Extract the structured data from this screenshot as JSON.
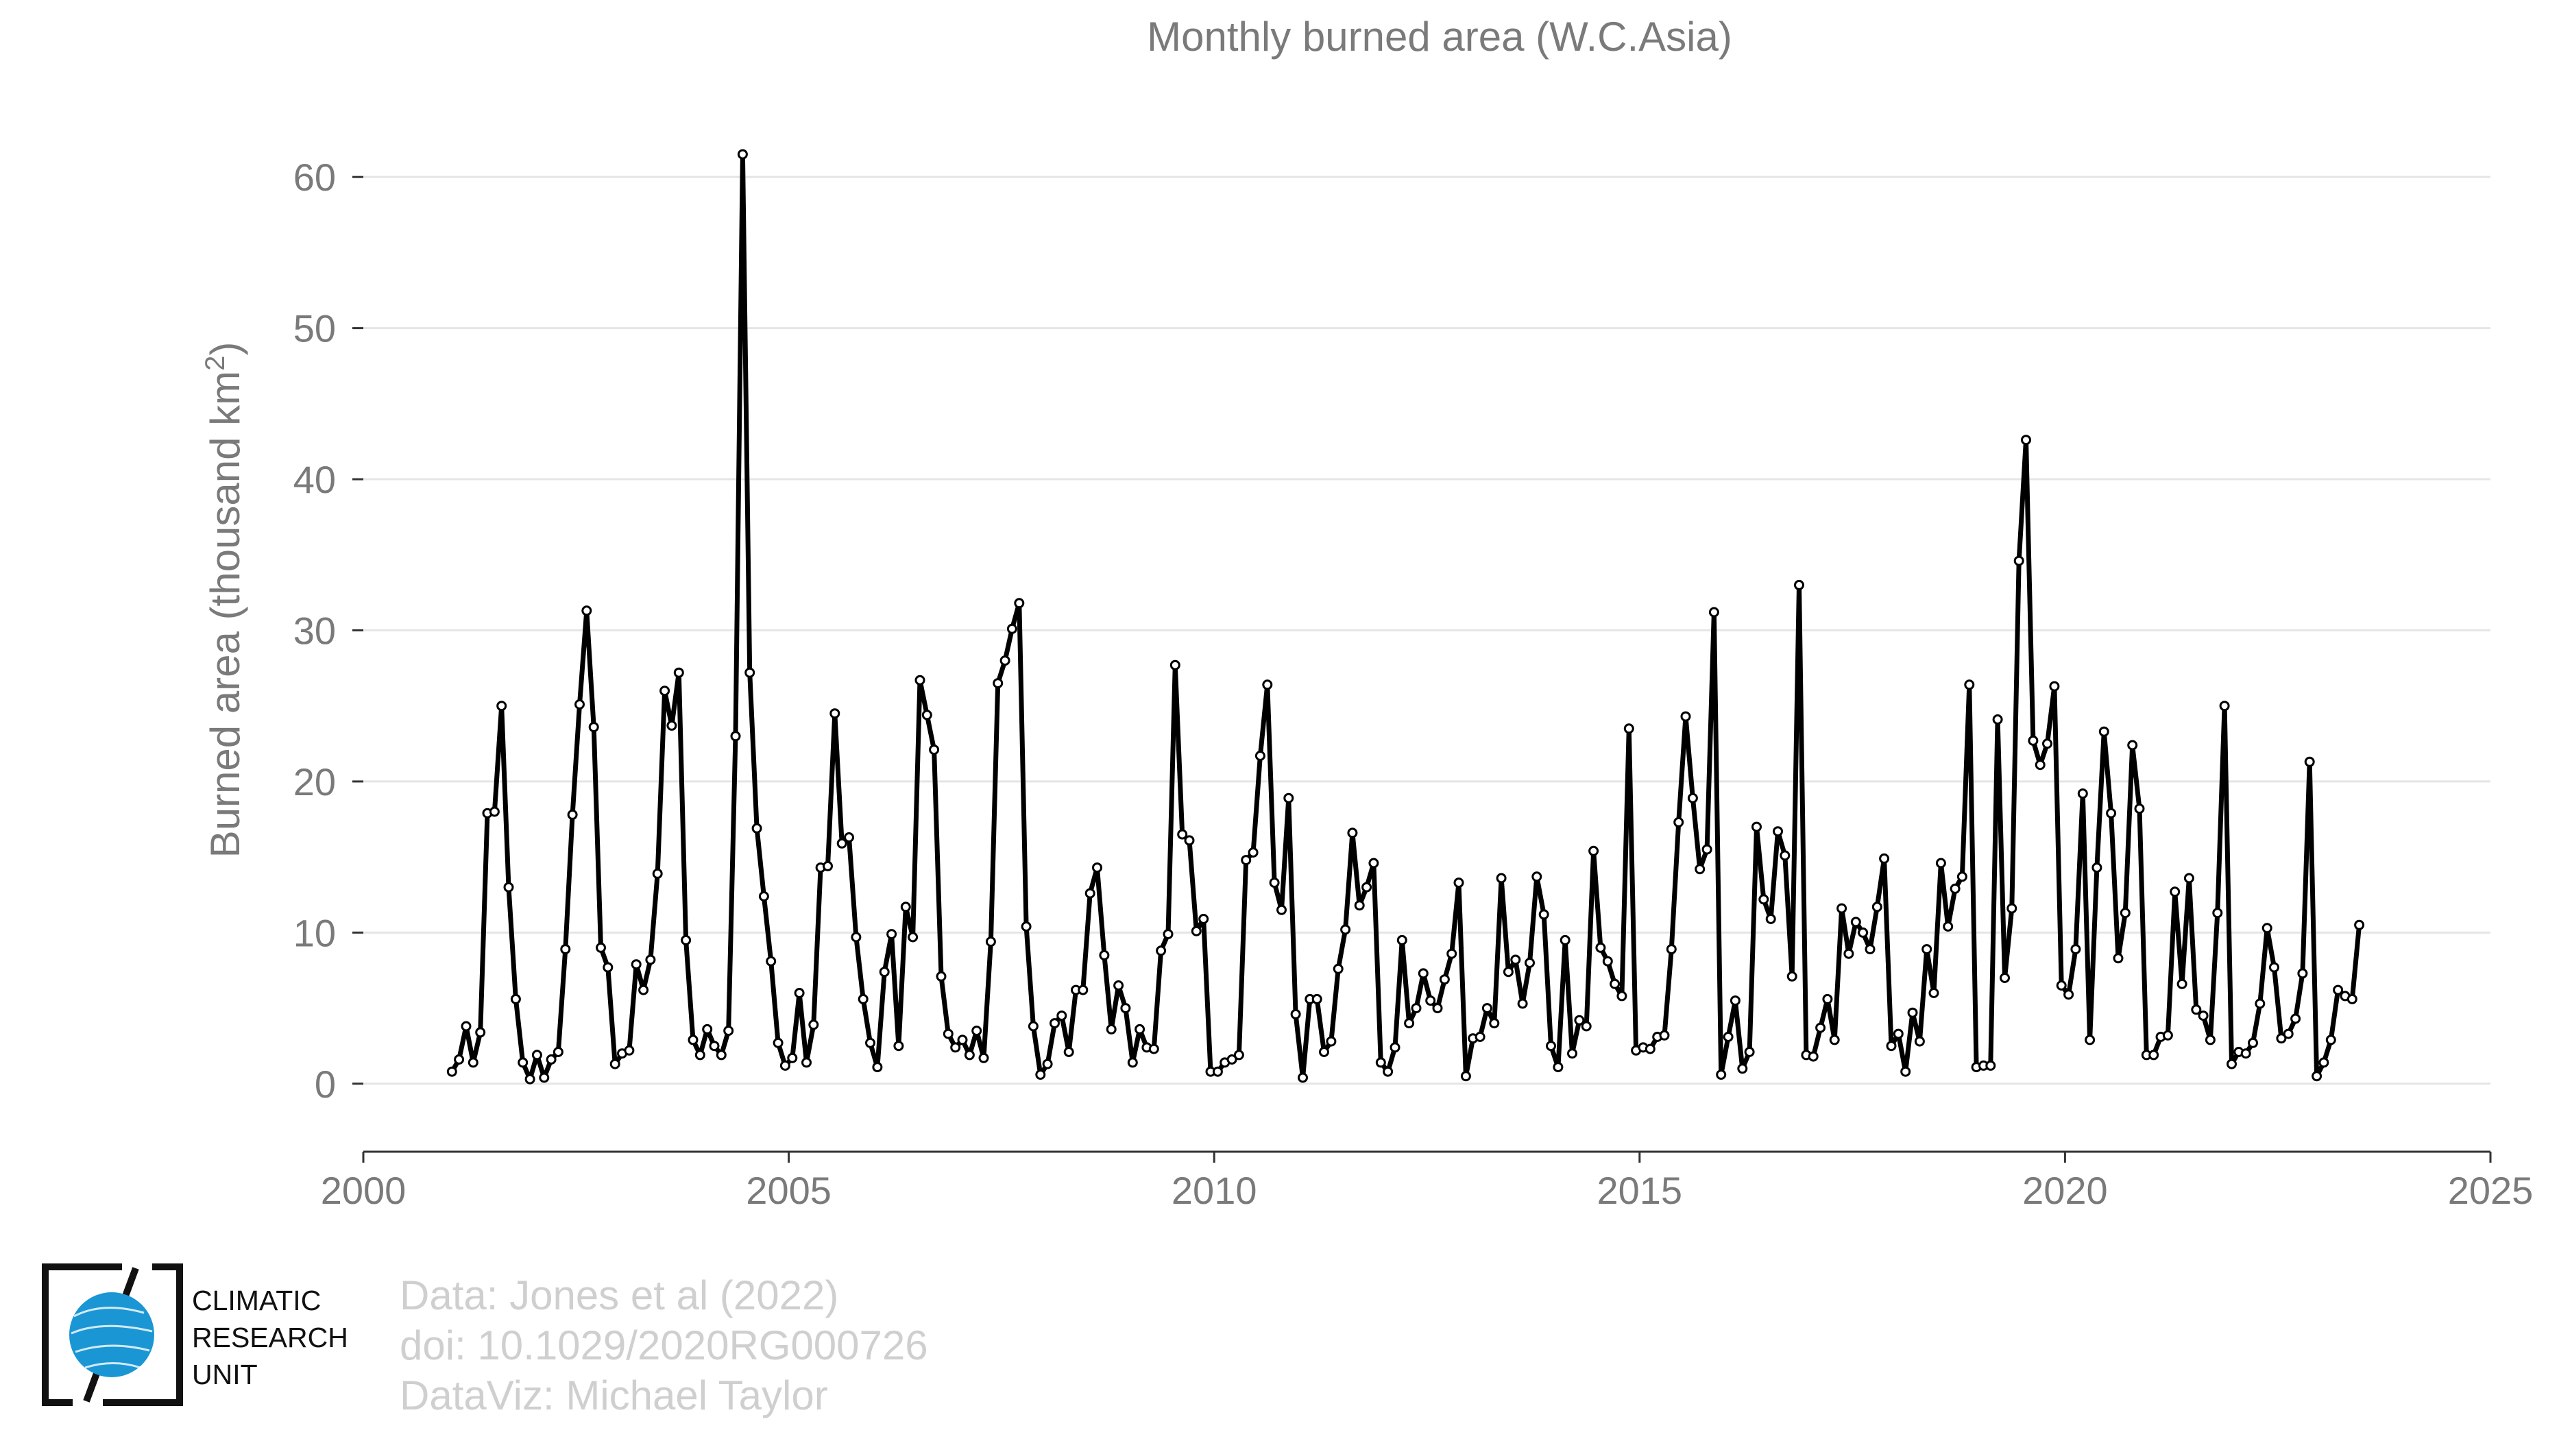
{
  "chart_data": {
    "type": "line",
    "title": "Monthly burned area (W.C.Asia)",
    "ylabel_main": "Burned area (thousand km",
    "ylabel_sup": "2",
    "ylabel_close": ")",
    "xlabel": "",
    "xlim": [
      2000,
      2025
    ],
    "ylim": [
      -4.5,
      64
    ],
    "xticks": [
      2000,
      2005,
      2010,
      2015,
      2020,
      2025
    ],
    "xtick_labels": [
      "2000",
      "2005",
      "2010",
      "2015",
      "2020",
      "2025"
    ],
    "yticks": [
      0,
      10,
      20,
      30,
      40,
      50,
      60
    ],
    "ytick_labels": [
      "0",
      "10",
      "20",
      "30",
      "40",
      "50",
      "60"
    ],
    "grid": true,
    "line_color": "#000000",
    "marker_fill": "#ffffff",
    "grid_color": "#e5e5e5",
    "axis_color": "#333333",
    "start": "2001-01",
    "x_unit": "month",
    "y_unit": "thousand km²",
    "series": [
      {
        "values": [
          0.8,
          1.6,
          3.8,
          1.4,
          3.4,
          17.9,
          18.0,
          25.0,
          13.0,
          5.6,
          1.4,
          0.3,
          1.9,
          0.4,
          1.6,
          2.1,
          8.9,
          17.8,
          25.1,
          31.3,
          23.6,
          9.0,
          7.7,
          1.3,
          2.0,
          2.2,
          7.9,
          6.2,
          8.2,
          13.9,
          26.0,
          23.7,
          27.2,
          9.5,
          2.9,
          1.9,
          3.6,
          2.5,
          1.9,
          3.5,
          23.0,
          61.5,
          27.2,
          16.9,
          12.4,
          8.1,
          2.7,
          1.2,
          1.7,
          6.0,
          1.4,
          3.9,
          14.3,
          14.4,
          24.5,
          15.9,
          16.3,
          9.7,
          5.6,
          2.7,
          1.1,
          7.4,
          9.9,
          2.5,
          11.7,
          9.7,
          26.7,
          24.4,
          22.1,
          7.1,
          3.3,
          2.4,
          2.9,
          1.9,
          3.5,
          1.7,
          9.4,
          26.5,
          28.0,
          30.1,
          31.8,
          10.4,
          3.8,
          0.6,
          1.3,
          4.0,
          4.5,
          2.1,
          6.2,
          6.2,
          12.6,
          14.3,
          8.5,
          3.6,
          6.5,
          5.0,
          1.4,
          3.6,
          2.4,
          2.3,
          8.8,
          9.9,
          27.7,
          16.5,
          16.1,
          10.1,
          10.9,
          0.8,
          0.8,
          1.4,
          1.6,
          1.9,
          14.8,
          15.3,
          21.7,
          26.4,
          13.3,
          11.5,
          18.9,
          4.6,
          0.4,
          5.6,
          5.6,
          2.1,
          2.8,
          7.6,
          10.2,
          16.6,
          11.8,
          13.0,
          14.6,
          1.4,
          0.8,
          2.4,
          9.5,
          4.0,
          5.0,
          7.3,
          5.5,
          5.0,
          6.9,
          8.6,
          13.3,
          0.5,
          3.0,
          3.1,
          5.0,
          4.0,
          13.6,
          7.4,
          8.2,
          5.3,
          8.0,
          13.7,
          11.2,
          2.5,
          1.1,
          9.5,
          2.0,
          4.2,
          3.8,
          15.4,
          9.0,
          8.1,
          6.6,
          5.8,
          23.5,
          2.2,
          2.4,
          2.3,
          3.1,
          3.2,
          8.9,
          17.3,
          24.3,
          18.9,
          14.2,
          15.5,
          31.2,
          0.6,
          3.1,
          5.5,
          1.0,
          2.1,
          17.0,
          12.2,
          10.9,
          16.7,
          15.1,
          7.1,
          33.0,
          1.9,
          1.8,
          3.7,
          5.6,
          2.9,
          11.6,
          8.6,
          10.7,
          10.0,
          8.9,
          11.7,
          14.9,
          2.5,
          3.3,
          0.8,
          4.7,
          2.8,
          8.9,
          6.0,
          14.6,
          10.4,
          12.9,
          13.7,
          26.4,
          1.1,
          1.2,
          1.2,
          24.1,
          7.0,
          11.6,
          34.6,
          42.6,
          22.7,
          21.1,
          22.5,
          26.3,
          6.5,
          5.9,
          8.9,
          19.2,
          2.9,
          14.3,
          23.3,
          17.9,
          8.3,
          11.3,
          22.4,
          18.2,
          1.9,
          1.9,
          3.1,
          3.2,
          12.7,
          6.6,
          13.6,
          4.9,
          4.5,
          2.9,
          11.3,
          25.0,
          1.3,
          2.1,
          2.0,
          2.7,
          5.3,
          10.3,
          7.7,
          3.0,
          3.3,
          4.3,
          7.3,
          21.3,
          0.5,
          1.4,
          2.9,
          6.2,
          5.8,
          5.6,
          10.5
        ]
      }
    ]
  },
  "credits": {
    "line1": "Data: Jones et al (2022)",
    "line2": "doi: 10.1029/2020RG000726",
    "line3": "DataViz: Michael Taylor"
  },
  "logo": {
    "line1": "CLIMATIC",
    "line2": "RESEARCH",
    "line3": "UNIT",
    "globe_color": "#1a96d4",
    "frame_color": "#111111"
  }
}
